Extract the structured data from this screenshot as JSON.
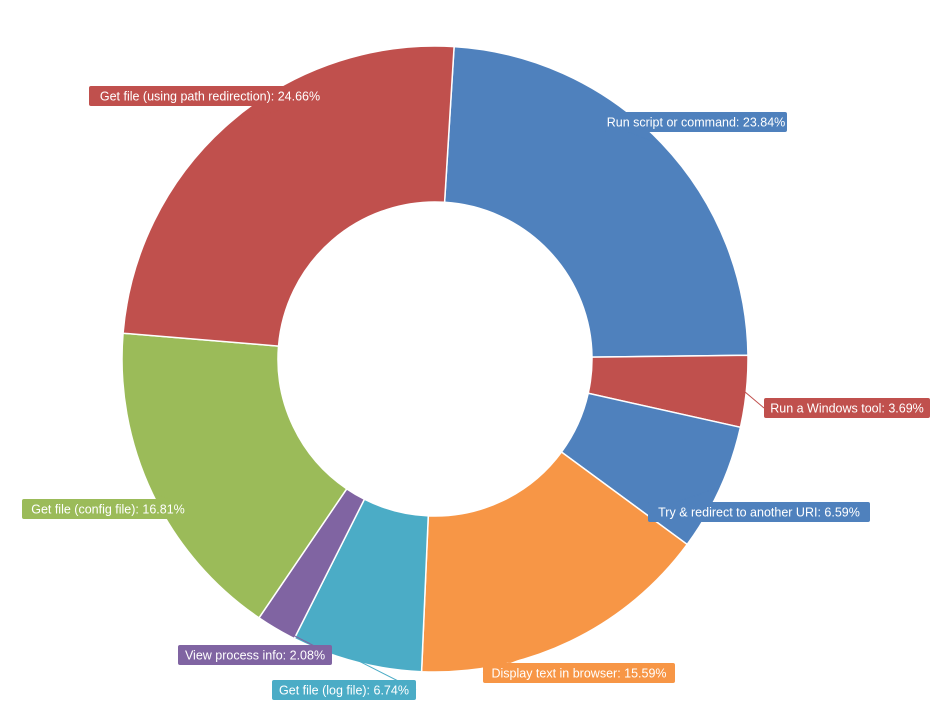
{
  "chart_data": {
    "type": "pie",
    "variant": "donut",
    "slices": [
      {
        "label": "Run script or command",
        "value": 23.84,
        "display": "Run script or command: 23.84%",
        "color": "#4F81BD"
      },
      {
        "label": "Run a Windows tool",
        "value": 3.69,
        "display": "Run a Windows tool: 3.69%",
        "color": "#C0504D"
      },
      {
        "label": "Try & redirect to another URI",
        "value": 6.59,
        "display": "Try & redirect to another URI: 6.59%",
        "color": "#4F81BD"
      },
      {
        "label": "Display text in browser",
        "value": 15.59,
        "display": "Display text in browser: 15.59%",
        "color": "#F79646"
      },
      {
        "label": "Get file (log file)",
        "value": 6.74,
        "display": "Get file (log file): 6.74%",
        "color": "#4BACC6"
      },
      {
        "label": "View process info",
        "value": 2.08,
        "display": "View process info: 2.08%",
        "color": "#8064A2"
      },
      {
        "label": "Get file (config file)",
        "value": 16.81,
        "display": "Get file (config file): 16.81%",
        "color": "#9BBB59"
      },
      {
        "label": "Get file (using path redirection)",
        "value": 24.66,
        "display": "Get file (using path redirection): 24.66%",
        "color": "#C0504D"
      }
    ],
    "start_direction": "top",
    "direction": "clockwise",
    "labels": "outside with leader lines"
  }
}
